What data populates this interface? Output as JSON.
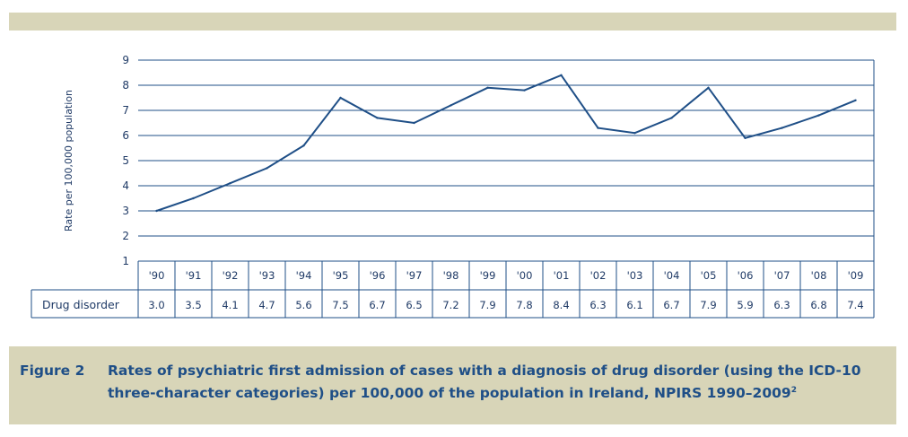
{
  "chart_data": {
    "type": "line",
    "ylabel": "Rate per 100,000 population",
    "ylim": [
      1,
      9
    ],
    "yticks": [
      "1",
      "2",
      "3",
      "4",
      "5",
      "6",
      "7",
      "8",
      "9"
    ],
    "categories": [
      "'90",
      "'91",
      "'92",
      "'93",
      "'94",
      "'95",
      "'96",
      "'97",
      "'98",
      "'99",
      "'00",
      "'01",
      "'02",
      "'03",
      "'04",
      "'05",
      "'06",
      "'07",
      "'08",
      "'09"
    ],
    "series": [
      {
        "name": "Drug disorder",
        "values": [
          3.0,
          3.5,
          4.1,
          4.7,
          5.6,
          7.5,
          6.7,
          6.5,
          7.2,
          7.9,
          7.8,
          8.4,
          6.3,
          6.1,
          6.7,
          7.9,
          5.9,
          6.3,
          6.8,
          7.4
        ],
        "value_labels": [
          "3.0",
          "3.5",
          "4.1",
          "4.7",
          "5.6",
          "7.5",
          "6.7",
          "6.5",
          "7.2",
          "7.9",
          "7.8",
          "8.4",
          "6.3",
          "6.1",
          "6.7",
          "7.9",
          "5.9",
          "6.3",
          "6.8",
          "7.4"
        ]
      }
    ],
    "grid": true,
    "colors": {
      "line": "#1f4f87",
      "grid": "#1f4f87",
      "band": "#d8d5b8"
    }
  },
  "caption": {
    "figure_label": "Figure 2",
    "text": "Rates of psychiatric first admission of cases with a diagnosis of drug disorder (using the ICD-10 three-character categories) per 100,000 of the population in Ireland, NPIRS 1990–2009",
    "superscript": "2"
  }
}
